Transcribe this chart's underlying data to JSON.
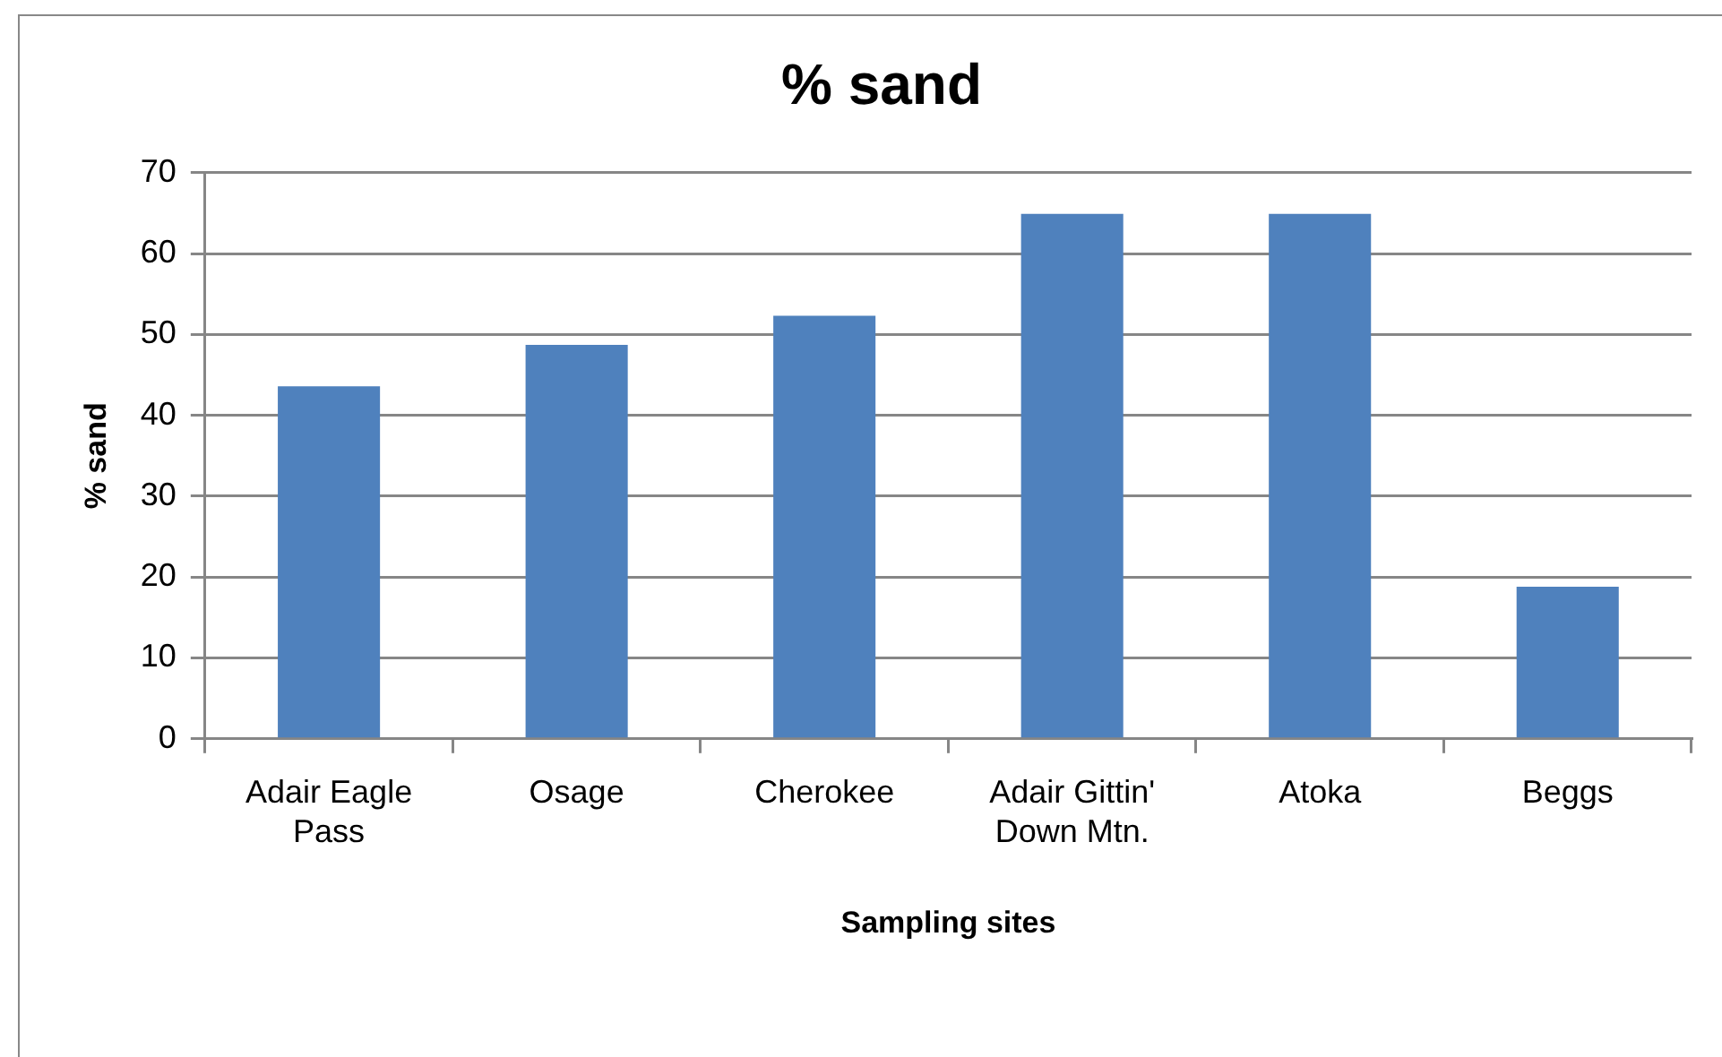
{
  "chart_data": {
    "type": "bar",
    "title": "% sand",
    "xlabel": "Sampling sites",
    "ylabel": "% sand",
    "categories": [
      "Adair Eagle Pass",
      "Osage",
      "Cherokee",
      "Adair Gittin' Down Mtn.",
      "Atoka",
      "Beggs"
    ],
    "values": [
      43.6,
      48.7,
      52.3,
      64.9,
      64.9,
      18.8
    ],
    "color": "#4f81bd",
    "ylim": [
      0,
      70
    ],
    "yticks": [
      0,
      10,
      20,
      30,
      40,
      50,
      60,
      70
    ],
    "grid": "y",
    "legend": false
  }
}
